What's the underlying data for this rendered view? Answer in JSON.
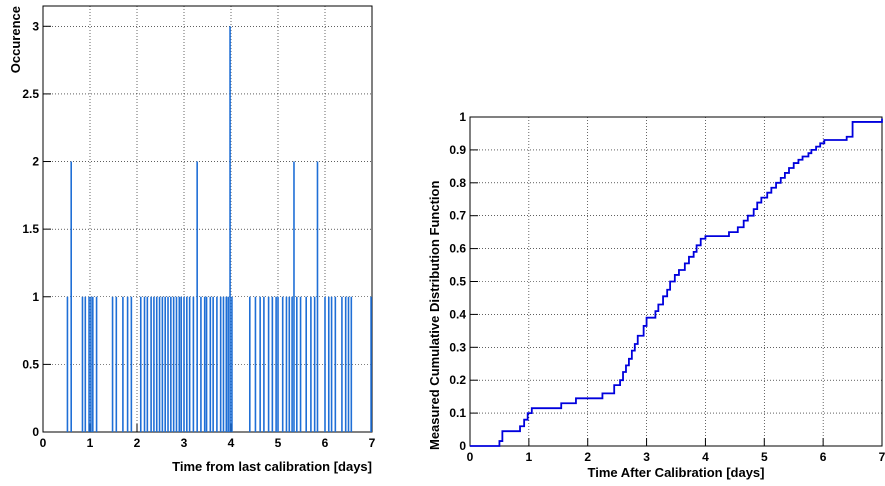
{
  "chart_data": [
    {
      "type": "bar",
      "xlabel": "Time from last calibration [days]",
      "ylabel": "Occurence",
      "xlim": [
        0,
        7
      ],
      "ylim": [
        0,
        3.15
      ],
      "grid": true,
      "color": "#1f6fd6",
      "x_ticks": [
        "0",
        "1",
        "2",
        "3",
        "4",
        "5",
        "6",
        "7"
      ],
      "y_ticks": [
        "0",
        "0.5",
        "1",
        "1.5",
        "2",
        "2.5",
        "3"
      ],
      "x": [
        0.52,
        0.6,
        0.84,
        0.9,
        0.98,
        1.02,
        1.06,
        1.14,
        1.48,
        1.56,
        1.7,
        1.8,
        1.88,
        2.08,
        2.16,
        2.22,
        2.3,
        2.36,
        2.42,
        2.48,
        2.54,
        2.6,
        2.66,
        2.72,
        2.78,
        2.84,
        2.9,
        2.94,
        3.0,
        3.06,
        3.12,
        3.2,
        3.28,
        3.36,
        3.44,
        3.48,
        3.56,
        3.62,
        3.7,
        3.78,
        3.84,
        3.9,
        3.94,
        3.98,
        4.02,
        4.4,
        4.52,
        4.62,
        4.7,
        4.8,
        4.88,
        4.96,
        5.0,
        5.1,
        5.18,
        5.24,
        5.3,
        5.34,
        5.4,
        5.48,
        5.6,
        5.7,
        5.78,
        5.84,
        6.0,
        6.08,
        6.14,
        6.22,
        6.36,
        6.44,
        6.5,
        6.56,
        6.98
      ],
      "values": [
        1,
        2,
        1,
        1,
        1,
        1,
        1,
        1,
        1,
        1,
        1,
        1,
        1,
        1,
        1,
        1,
        1,
        1,
        1,
        1,
        1,
        1,
        1,
        1,
        1,
        1,
        1,
        1,
        1,
        1,
        1,
        1,
        2,
        1,
        1,
        1,
        1,
        1,
        1,
        1,
        1,
        1,
        1,
        3,
        1,
        1,
        1,
        1,
        1,
        1,
        1,
        1,
        1,
        1,
        1,
        1,
        1,
        2,
        1,
        1,
        1,
        1,
        1,
        2,
        1,
        1,
        1,
        1,
        1,
        1,
        1,
        1,
        1
      ]
    },
    {
      "type": "line",
      "xlabel": "Time After Calibration [days]",
      "ylabel": "Measured Cumulative Distribution Function",
      "xlim": [
        0,
        7
      ],
      "ylim": [
        0,
        1
      ],
      "grid": true,
      "step": true,
      "color": "#0000dd",
      "x_ticks": [
        "0",
        "1",
        "2",
        "3",
        "4",
        "5",
        "6",
        "7"
      ],
      "y_ticks": [
        "0",
        "0.1",
        "0.2",
        "0.3",
        "0.4",
        "0.5",
        "0.6",
        "0.7",
        "0.8",
        "0.9",
        "1"
      ],
      "x": [
        0,
        0.5,
        0.55,
        0.85,
        0.92,
        0.98,
        1.05,
        1.55,
        1.8,
        2.25,
        2.45,
        2.55,
        2.6,
        2.65,
        2.7,
        2.75,
        2.8,
        2.85,
        2.95,
        3.0,
        3.15,
        3.2,
        3.28,
        3.35,
        3.4,
        3.48,
        3.55,
        3.65,
        3.72,
        3.8,
        3.85,
        3.92,
        4.0,
        4.4,
        4.55,
        4.65,
        4.72,
        4.82,
        4.88,
        4.95,
        5.05,
        5.12,
        5.2,
        5.28,
        5.35,
        5.42,
        5.5,
        5.58,
        5.65,
        5.75,
        5.8,
        5.88,
        5.95,
        6.02,
        6.4,
        6.5,
        7.0
      ],
      "y": [
        0,
        0.015,
        0.045,
        0.06,
        0.08,
        0.1,
        0.115,
        0.13,
        0.145,
        0.16,
        0.185,
        0.2,
        0.225,
        0.245,
        0.265,
        0.29,
        0.31,
        0.335,
        0.365,
        0.39,
        0.41,
        0.43,
        0.455,
        0.475,
        0.5,
        0.52,
        0.535,
        0.555,
        0.575,
        0.59,
        0.61,
        0.63,
        0.638,
        0.65,
        0.665,
        0.685,
        0.7,
        0.72,
        0.74,
        0.755,
        0.77,
        0.785,
        0.8,
        0.815,
        0.83,
        0.845,
        0.86,
        0.87,
        0.88,
        0.89,
        0.9,
        0.91,
        0.92,
        0.93,
        0.94,
        0.985,
        0.995
      ]
    }
  ]
}
